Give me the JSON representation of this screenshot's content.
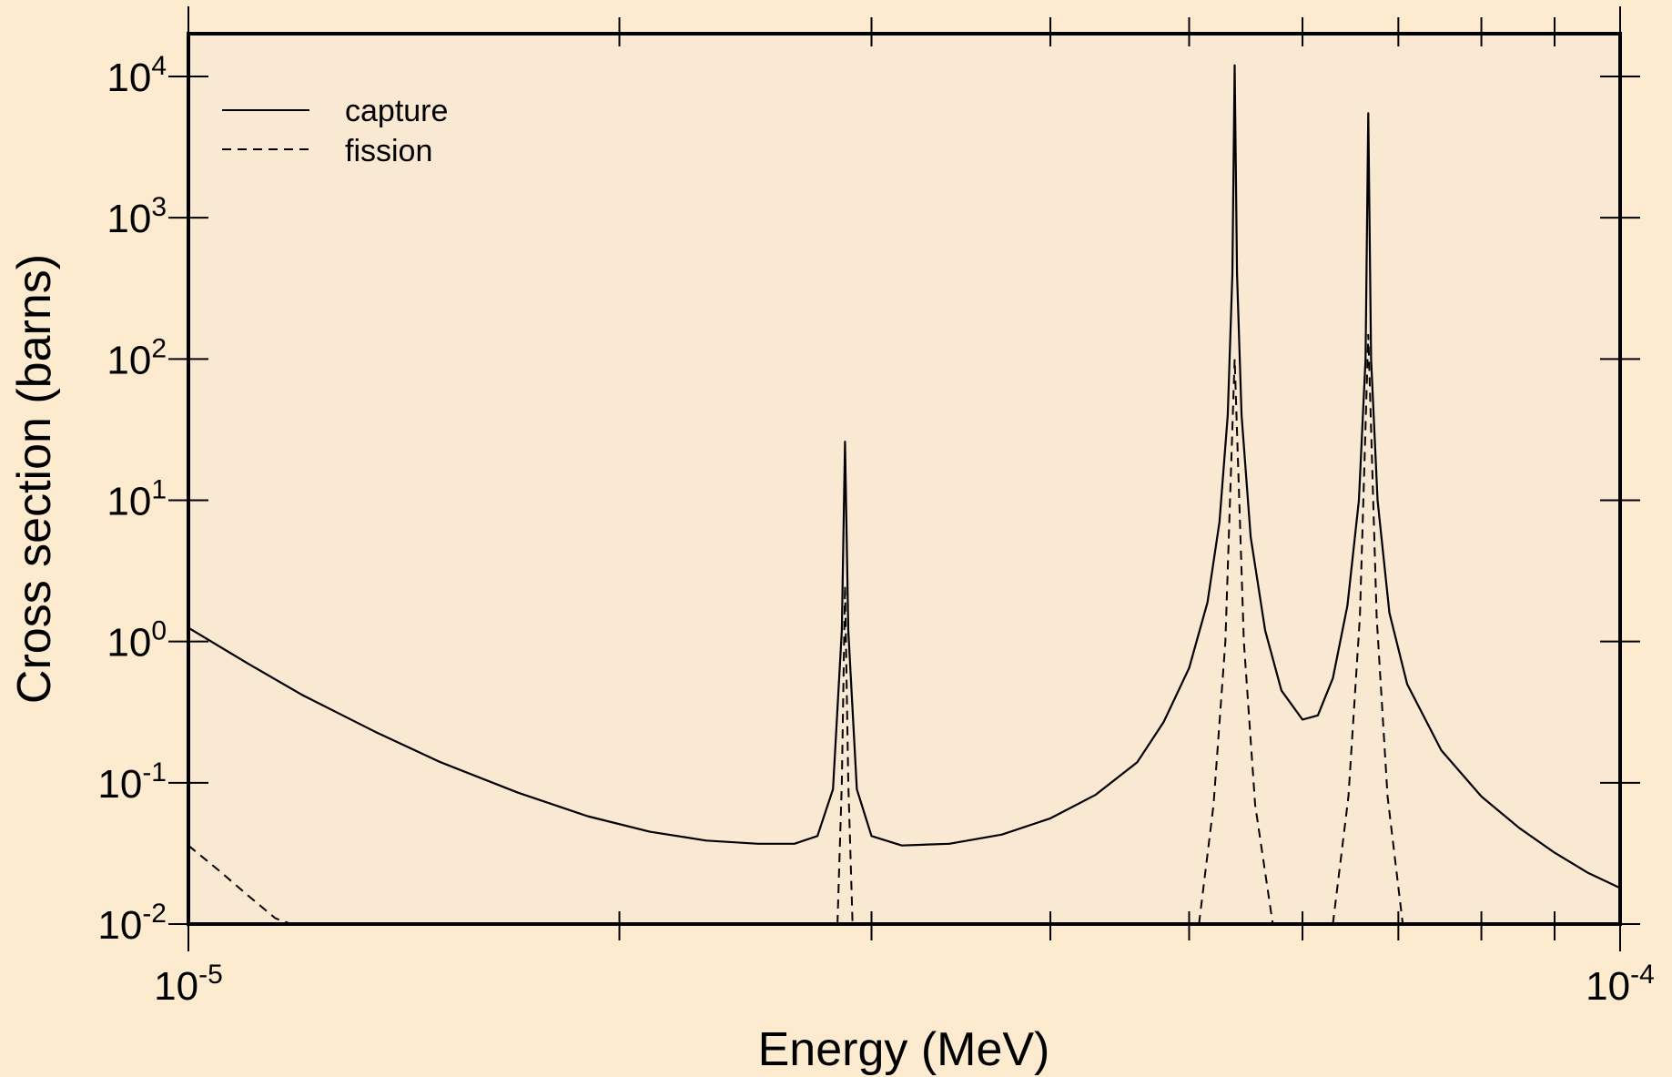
{
  "chart_data": {
    "type": "line",
    "title": "",
    "xlabel": "Energy (MeV)",
    "ylabel": "Cross section (barns)",
    "x_scale": "log",
    "y_scale": "log",
    "xlim": [
      1e-05,
      0.0001
    ],
    "ylim": [
      0.01,
      20000
    ],
    "x_ticks": [
      {
        "base": "10",
        "exp": "-5"
      },
      {
        "base": "10",
        "exp": "-4"
      }
    ],
    "y_ticks": [
      {
        "base": "10",
        "exp": "-2"
      },
      {
        "base": "10",
        "exp": "-1"
      },
      {
        "base": "10",
        "exp": "0"
      },
      {
        "base": "10",
        "exp": "1"
      },
      {
        "base": "10",
        "exp": "2"
      },
      {
        "base": "10",
        "exp": "3"
      },
      {
        "base": "10",
        "exp": "4"
      }
    ],
    "legend_position": "top-left",
    "series": [
      {
        "name": "capture",
        "style": "solid",
        "color": "#000000",
        "points": [
          [
            1e-05,
            1.25
          ],
          [
            1.1e-05,
            0.7
          ],
          [
            1.2e-05,
            0.42
          ],
          [
            1.35e-05,
            0.23
          ],
          [
            1.5e-05,
            0.14
          ],
          [
            1.7e-05,
            0.085
          ],
          [
            1.9e-05,
            0.058
          ],
          [
            2.1e-05,
            0.045
          ],
          [
            2.3e-05,
            0.039
          ],
          [
            2.5e-05,
            0.037
          ],
          [
            2.65e-05,
            0.037
          ],
          [
            2.75e-05,
            0.042
          ],
          [
            2.82e-05,
            0.09
          ],
          [
            2.86e-05,
            1.2
          ],
          [
            2.875e-05,
            26
          ],
          [
            2.89e-05,
            1.2
          ],
          [
            2.93e-05,
            0.09
          ],
          [
            3e-05,
            0.042
          ],
          [
            3.15e-05,
            0.036
          ],
          [
            3.4e-05,
            0.037
          ],
          [
            3.7e-05,
            0.043
          ],
          [
            4e-05,
            0.056
          ],
          [
            4.3e-05,
            0.082
          ],
          [
            4.6e-05,
            0.14
          ],
          [
            4.8e-05,
            0.27
          ],
          [
            5e-05,
            0.65
          ],
          [
            5.15e-05,
            1.9
          ],
          [
            5.25e-05,
            7
          ],
          [
            5.32e-05,
            40
          ],
          [
            5.36e-05,
            400
          ],
          [
            5.38e-05,
            12000
          ],
          [
            5.4e-05,
            400
          ],
          [
            5.44e-05,
            40
          ],
          [
            5.52e-05,
            5.5
          ],
          [
            5.65e-05,
            1.2
          ],
          [
            5.8e-05,
            0.45
          ],
          [
            6e-05,
            0.28
          ],
          [
            6.15e-05,
            0.3
          ],
          [
            6.3e-05,
            0.55
          ],
          [
            6.45e-05,
            1.8
          ],
          [
            6.57e-05,
            10
          ],
          [
            6.64e-05,
            100
          ],
          [
            6.67e-05,
            5500
          ],
          [
            6.7e-05,
            100
          ],
          [
            6.77e-05,
            10
          ],
          [
            6.9e-05,
            1.6
          ],
          [
            7.1e-05,
            0.5
          ],
          [
            7.5e-05,
            0.17
          ],
          [
            8e-05,
            0.08
          ],
          [
            8.5e-05,
            0.048
          ],
          [
            9e-05,
            0.032
          ],
          [
            9.5e-05,
            0.023
          ],
          [
            0.0001,
            0.018
          ]
        ]
      },
      {
        "name": "fission",
        "style": "dashed",
        "color": "#000000",
        "segments": [
          [
            [
              1e-05,
              0.036
            ],
            [
              1.05e-05,
              0.024
            ],
            [
              1.1e-05,
              0.016
            ],
            [
              1.15e-05,
              0.011
            ],
            [
              1.18e-05,
              0.01
            ]
          ],
          [
            [
              2.84e-05,
              0.01
            ],
            [
              2.86e-05,
              0.1
            ],
            [
              2.875e-05,
              2.5
            ],
            [
              2.89e-05,
              0.1
            ],
            [
              2.91e-05,
              0.01
            ]
          ],
          [
            [
              5.08e-05,
              0.01
            ],
            [
              5.2e-05,
              0.07
            ],
            [
              5.3e-05,
              1.0
            ],
            [
              5.38e-05,
              100
            ],
            [
              5.46e-05,
              1.0
            ],
            [
              5.56e-05,
              0.07
            ],
            [
              5.72e-05,
              0.01
            ]
          ],
          [
            [
              6.3e-05,
              0.01
            ],
            [
              6.46e-05,
              0.08
            ],
            [
              6.58e-05,
              1.5
            ],
            [
              6.67e-05,
              150
            ],
            [
              6.76e-05,
              1.5
            ],
            [
              6.88e-05,
              0.08
            ],
            [
              7.05e-05,
              0.01
            ]
          ]
        ]
      }
    ]
  }
}
